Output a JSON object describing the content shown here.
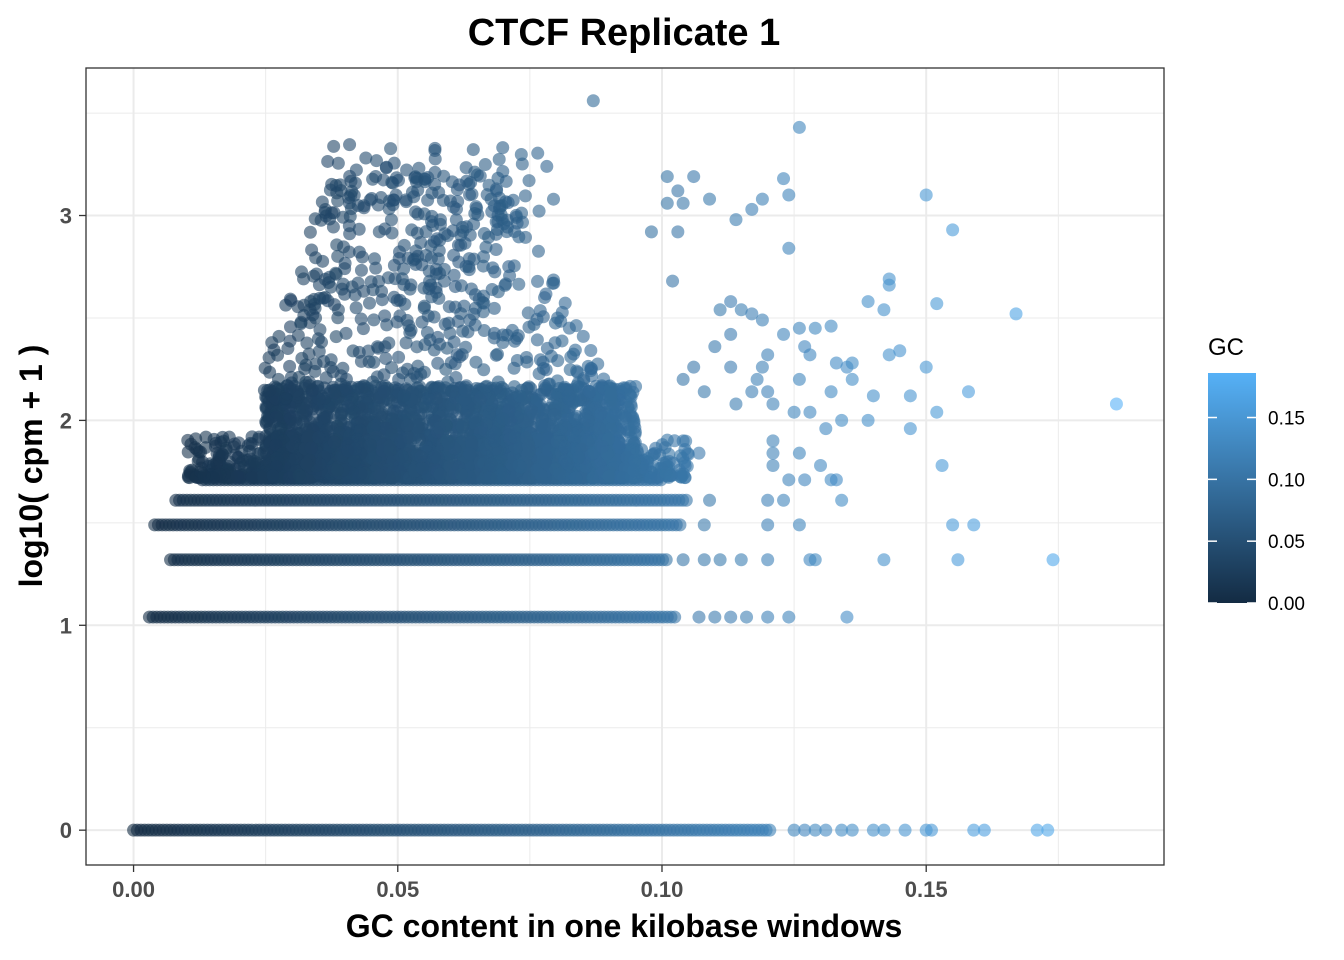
{
  "chart_data": {
    "type": "scatter",
    "title": "CTCF Replicate 1",
    "xlabel": "GC content in one kilobase windows",
    "ylabel": "log10( cpm + 1 )",
    "xlim": [
      -0.009,
      0.195
    ],
    "ylim": [
      -0.17,
      3.72
    ],
    "x_ticks": [
      0.0,
      0.05,
      0.1,
      0.15
    ],
    "x_tick_labels": [
      "0.00",
      "0.05",
      "0.10",
      "0.15"
    ],
    "y_ticks": [
      0,
      1,
      2,
      3
    ],
    "y_tick_labels": [
      "0",
      "1",
      "2",
      "3"
    ],
    "grid": true,
    "point_alpha": 0.6,
    "color_scale": {
      "name": "GC",
      "low_color": "#132B43",
      "high_color": "#56B1F7",
      "limits": [
        0.0,
        0.186
      ],
      "breaks": [
        0.0,
        0.05,
        0.1,
        0.15
      ],
      "break_labels": [
        "0.00",
        "0.05",
        "0.10",
        "0.15"
      ]
    },
    "legend_position": "right",
    "bands": [
      {
        "y": 0.0,
        "x_start": 0.0,
        "x_end": 0.121,
        "note": "continuous band"
      },
      {
        "y": 1.04,
        "x_start": 0.003,
        "x_end": 0.103
      },
      {
        "y": 1.32,
        "x_start": 0.007,
        "x_end": 0.101
      },
      {
        "y": 1.49,
        "x_start": 0.004,
        "x_end": 0.104
      },
      {
        "y": 1.61,
        "x_start": 0.008,
        "x_end": 0.105
      },
      {
        "y": 1.71,
        "x_start": 0.013,
        "x_end": 0.1
      }
    ],
    "points": [
      {
        "x": 0.125,
        "y": 0.0
      },
      {
        "x": 0.127,
        "y": 0.0
      },
      {
        "x": 0.129,
        "y": 0.0
      },
      {
        "x": 0.131,
        "y": 0.0
      },
      {
        "x": 0.134,
        "y": 0.0
      },
      {
        "x": 0.136,
        "y": 0.0
      },
      {
        "x": 0.14,
        "y": 0.0
      },
      {
        "x": 0.142,
        "y": 0.0
      },
      {
        "x": 0.146,
        "y": 0.0
      },
      {
        "x": 0.15,
        "y": 0.0
      },
      {
        "x": 0.151,
        "y": 0.0
      },
      {
        "x": 0.159,
        "y": 0.0
      },
      {
        "x": 0.161,
        "y": 0.0
      },
      {
        "x": 0.171,
        "y": 0.0
      },
      {
        "x": 0.173,
        "y": 0.0
      },
      {
        "x": 0.107,
        "y": 1.04
      },
      {
        "x": 0.11,
        "y": 1.04
      },
      {
        "x": 0.113,
        "y": 1.04
      },
      {
        "x": 0.116,
        "y": 1.04
      },
      {
        "x": 0.12,
        "y": 1.04
      },
      {
        "x": 0.124,
        "y": 1.04
      },
      {
        "x": 0.135,
        "y": 1.04
      },
      {
        "x": 0.104,
        "y": 1.32
      },
      {
        "x": 0.108,
        "y": 1.32
      },
      {
        "x": 0.111,
        "y": 1.32
      },
      {
        "x": 0.115,
        "y": 1.32
      },
      {
        "x": 0.12,
        "y": 1.32
      },
      {
        "x": 0.128,
        "y": 1.32
      },
      {
        "x": 0.129,
        "y": 1.32
      },
      {
        "x": 0.142,
        "y": 1.32
      },
      {
        "x": 0.156,
        "y": 1.32
      },
      {
        "x": 0.174,
        "y": 1.32
      },
      {
        "x": 0.108,
        "y": 1.49
      },
      {
        "x": 0.12,
        "y": 1.49
      },
      {
        "x": 0.126,
        "y": 1.49
      },
      {
        "x": 0.155,
        "y": 1.49
      },
      {
        "x": 0.159,
        "y": 1.49
      },
      {
        "x": 0.109,
        "y": 1.61
      },
      {
        "x": 0.12,
        "y": 1.61
      },
      {
        "x": 0.123,
        "y": 1.61
      },
      {
        "x": 0.134,
        "y": 1.61
      },
      {
        "x": 0.124,
        "y": 1.71
      },
      {
        "x": 0.127,
        "y": 1.71
      },
      {
        "x": 0.132,
        "y": 1.71
      },
      {
        "x": 0.133,
        "y": 1.71
      },
      {
        "x": 0.121,
        "y": 1.78
      },
      {
        "x": 0.13,
        "y": 1.78
      },
      {
        "x": 0.153,
        "y": 1.78
      },
      {
        "x": 0.107,
        "y": 1.84
      },
      {
        "x": 0.121,
        "y": 1.84
      },
      {
        "x": 0.126,
        "y": 1.84
      },
      {
        "x": 0.104,
        "y": 1.9
      },
      {
        "x": 0.121,
        "y": 1.9
      },
      {
        "x": 0.131,
        "y": 1.96
      },
      {
        "x": 0.147,
        "y": 1.96
      },
      {
        "x": 0.125,
        "y": 2.04
      },
      {
        "x": 0.128,
        "y": 2.04
      },
      {
        "x": 0.134,
        "y": 2.0
      },
      {
        "x": 0.139,
        "y": 2.0
      },
      {
        "x": 0.152,
        "y": 2.04
      },
      {
        "x": 0.114,
        "y": 2.08
      },
      {
        "x": 0.121,
        "y": 2.08
      },
      {
        "x": 0.186,
        "y": 2.08
      },
      {
        "x": 0.108,
        "y": 2.14
      },
      {
        "x": 0.117,
        "y": 2.14
      },
      {
        "x": 0.12,
        "y": 2.14
      },
      {
        "x": 0.132,
        "y": 2.14
      },
      {
        "x": 0.14,
        "y": 2.12
      },
      {
        "x": 0.147,
        "y": 2.12
      },
      {
        "x": 0.158,
        "y": 2.14
      },
      {
        "x": 0.104,
        "y": 2.2
      },
      {
        "x": 0.118,
        "y": 2.2
      },
      {
        "x": 0.126,
        "y": 2.2
      },
      {
        "x": 0.136,
        "y": 2.2
      },
      {
        "x": 0.106,
        "y": 2.26
      },
      {
        "x": 0.113,
        "y": 2.26
      },
      {
        "x": 0.119,
        "y": 2.26
      },
      {
        "x": 0.135,
        "y": 2.26
      },
      {
        "x": 0.15,
        "y": 2.26
      },
      {
        "x": 0.12,
        "y": 2.32
      },
      {
        "x": 0.128,
        "y": 2.32
      },
      {
        "x": 0.133,
        "y": 2.28
      },
      {
        "x": 0.136,
        "y": 2.28
      },
      {
        "x": 0.143,
        "y": 2.32
      },
      {
        "x": 0.11,
        "y": 2.36
      },
      {
        "x": 0.127,
        "y": 2.36
      },
      {
        "x": 0.145,
        "y": 2.34
      },
      {
        "x": 0.113,
        "y": 2.42
      },
      {
        "x": 0.123,
        "y": 2.42
      },
      {
        "x": 0.126,
        "y": 2.45
      },
      {
        "x": 0.129,
        "y": 2.45
      },
      {
        "x": 0.132,
        "y": 2.46
      },
      {
        "x": 0.119,
        "y": 2.49
      },
      {
        "x": 0.111,
        "y": 2.54
      },
      {
        "x": 0.115,
        "y": 2.54
      },
      {
        "x": 0.117,
        "y": 2.52
      },
      {
        "x": 0.113,
        "y": 2.58
      },
      {
        "x": 0.139,
        "y": 2.58
      },
      {
        "x": 0.142,
        "y": 2.54
      },
      {
        "x": 0.152,
        "y": 2.57
      },
      {
        "x": 0.167,
        "y": 2.52
      },
      {
        "x": 0.102,
        "y": 2.68
      },
      {
        "x": 0.143,
        "y": 2.66
      },
      {
        "x": 0.143,
        "y": 2.69
      },
      {
        "x": 0.098,
        "y": 2.92
      },
      {
        "x": 0.103,
        "y": 2.92
      },
      {
        "x": 0.124,
        "y": 2.84
      },
      {
        "x": 0.155,
        "y": 2.93
      },
      {
        "x": 0.114,
        "y": 2.98
      },
      {
        "x": 0.117,
        "y": 3.03
      },
      {
        "x": 0.119,
        "y": 3.08
      },
      {
        "x": 0.124,
        "y": 3.1
      },
      {
        "x": 0.101,
        "y": 3.06
      },
      {
        "x": 0.104,
        "y": 3.06
      },
      {
        "x": 0.109,
        "y": 3.08
      },
      {
        "x": 0.103,
        "y": 3.12
      },
      {
        "x": 0.15,
        "y": 3.1
      },
      {
        "x": 0.101,
        "y": 3.19
      },
      {
        "x": 0.106,
        "y": 3.19
      },
      {
        "x": 0.123,
        "y": 3.18
      },
      {
        "x": 0.126,
        "y": 3.43
      },
      {
        "x": 0.087,
        "y": 3.56
      }
    ]
  }
}
